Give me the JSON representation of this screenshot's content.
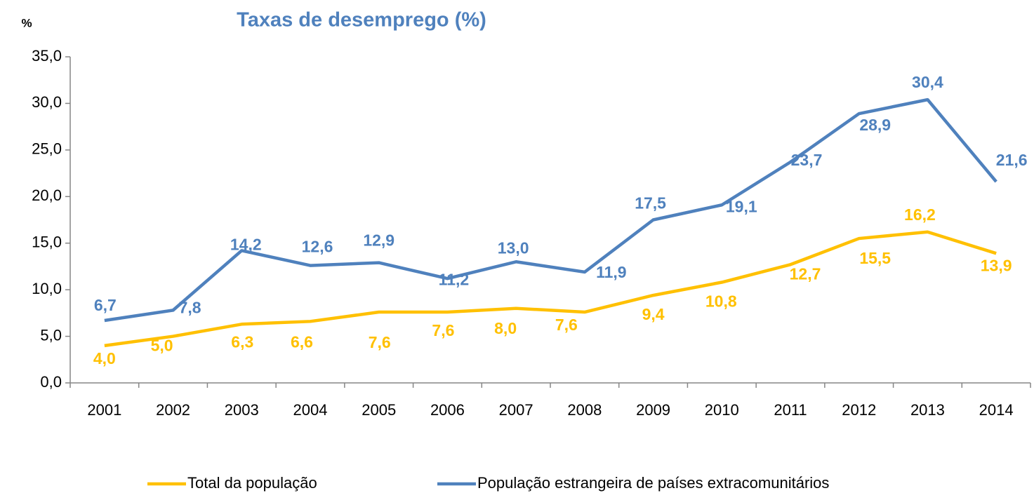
{
  "chart_data": {
    "type": "line",
    "title": "Taxas de desemprego (%)",
    "y_label": "%",
    "categories": [
      "2001",
      "2002",
      "2003",
      "2004",
      "2005",
      "2006",
      "2007",
      "2008",
      "2009",
      "2010",
      "2011",
      "2012",
      "2013",
      "2014"
    ],
    "series": [
      {
        "name": "Total da população",
        "color": "#FFC000",
        "values": [
          4.0,
          5.0,
          6.3,
          6.6,
          7.6,
          7.6,
          8.0,
          7.6,
          9.4,
          10.8,
          12.7,
          15.5,
          16.2,
          13.9
        ],
        "value_labels": [
          "4,0",
          "5,0",
          "6,3",
          "6,6",
          "7,6",
          "7,6",
          "8,0",
          "7,6",
          "9,4",
          "10,8",
          "12,7",
          "15,5",
          "16,2",
          "13,9"
        ]
      },
      {
        "name": "População estrangeira de países extracomunitários",
        "color": "#4F81BD",
        "values": [
          6.7,
          7.8,
          14.2,
          12.6,
          12.9,
          11.2,
          13.0,
          11.9,
          17.5,
          19.1,
          23.7,
          28.9,
          30.4,
          21.6
        ],
        "value_labels": [
          "6,7",
          "7,8",
          "14,2",
          "12,6",
          "12,9",
          "11,2",
          "13,0",
          "11,9",
          "17,5",
          "19,1",
          "23,7",
          "28,9",
          "30,4",
          "21,6"
        ]
      }
    ],
    "ylim": [
      0,
      35
    ],
    "yticks": [
      {
        "value": 0,
        "label": "0,0"
      },
      {
        "value": 5,
        "label": "5,0"
      },
      {
        "value": 10,
        "label": "10,0"
      },
      {
        "value": 15,
        "label": "15,0"
      },
      {
        "value": 20,
        "label": "20,0"
      },
      {
        "value": 25,
        "label": "25,0"
      },
      {
        "value": 30,
        "label": "30,0"
      },
      {
        "value": 35,
        "label": "35,0"
      }
    ],
    "grid": false,
    "legend": "bottom"
  }
}
